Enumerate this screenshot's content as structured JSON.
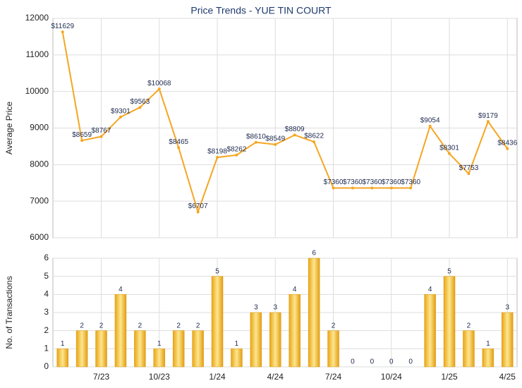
{
  "chart_data": [
    {
      "type": "line",
      "title": "Price Trends - YUE TIN COURT",
      "ylabel": "Average Price",
      "color": "#f5a623",
      "values": [
        11629,
        8659,
        8767,
        9301,
        9563,
        10068,
        8465,
        6707,
        8198,
        8262,
        8610,
        8549,
        8809,
        8622,
        7360,
        7360,
        7360,
        7360,
        7360,
        9054,
        8301,
        7753,
        9179,
        8436
      ],
      "value_labels": [
        "$11629",
        "$8659",
        "$8767",
        "$9301",
        "$9563",
        "$10068",
        "$8465",
        "$6707",
        "$8198",
        "$8262",
        "$8610",
        "$8549",
        "$8809",
        "$8622",
        "$7360",
        "$7360",
        "$7360",
        "$7360",
        "$7360",
        "$9054",
        "$8301",
        "$7753",
        "$9179",
        "$8436"
      ],
      "ylim": [
        6000,
        12000
      ],
      "yticks": [
        6000,
        7000,
        8000,
        9000,
        10000,
        11000,
        12000
      ],
      "grid": true
    },
    {
      "type": "bar",
      "ylabel": "No. of Transactions",
      "color": "#e09a10",
      "categories": [
        null,
        null,
        "7/23",
        null,
        null,
        "10/23",
        null,
        null,
        "1/24",
        null,
        null,
        "4/24",
        null,
        null,
        "7/24",
        null,
        null,
        "10/24",
        null,
        null,
        "1/25",
        null,
        null,
        "4/25"
      ],
      "values": [
        1,
        2,
        2,
        4,
        2,
        1,
        2,
        2,
        5,
        1,
        3,
        3,
        4,
        6,
        2,
        0,
        0,
        0,
        0,
        4,
        5,
        2,
        1,
        3
      ],
      "ylim": [
        0,
        6
      ],
      "yticks": [
        0,
        1,
        2,
        3,
        4,
        5,
        6
      ],
      "grid": true
    }
  ]
}
